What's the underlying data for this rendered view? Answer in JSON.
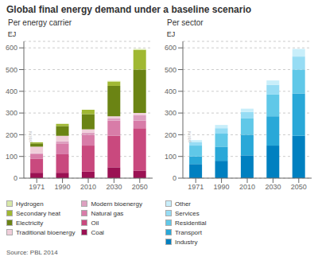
{
  "chart_data": [
    {
      "type": "bar",
      "stacked": true,
      "title": "Global final energy demand under a baseline scenario",
      "subtitle": "Per energy carrier",
      "annotations": [
        "pbl.nl",
        "Source: PBL 2014"
      ],
      "categories": [
        "1971",
        "1990",
        "2010",
        "2030",
        "2050"
      ],
      "ylabel": "EJ",
      "ylim": [
        0,
        630
      ],
      "yticks": [
        0,
        100,
        200,
        300,
        400,
        500,
        600
      ],
      "grid": true,
      "series": [
        {
          "name": "Coal",
          "color": "#9b1153",
          "values": [
            25,
            25,
            30,
            50,
            35
          ]
        },
        {
          "name": "Oil",
          "color": "#c9497e",
          "values": [
            65,
            85,
            120,
            145,
            195
          ]
        },
        {
          "name": "Natural gas",
          "color": "#d87ca8",
          "values": [
            20,
            50,
            50,
            70,
            35
          ]
        },
        {
          "name": "Modern bioenergy",
          "color": "#dda0c0",
          "values": [
            5,
            10,
            10,
            10,
            25
          ]
        },
        {
          "name": "Traditional bioenergy",
          "color": "#f0ceda",
          "values": [
            30,
            25,
            15,
            10,
            10
          ]
        },
        {
          "name": "Electricity",
          "color": "#6b8414",
          "values": [
            15,
            45,
            70,
            140,
            200
          ]
        },
        {
          "name": "Secondary heat",
          "color": "#a0b832",
          "values": [
            5,
            10,
            20,
            20,
            90
          ]
        },
        {
          "name": "Hydrogen",
          "color": "#d8e8a8",
          "values": [
            0,
            0,
            0,
            3,
            5
          ]
        }
      ]
    },
    {
      "type": "bar",
      "stacked": true,
      "subtitle": "Per sector",
      "annotations": [
        "pbl.nl"
      ],
      "categories": [
        "1971",
        "1990",
        "2010",
        "2030",
        "2050"
      ],
      "ylabel": "EJ",
      "ylim": [
        0,
        630
      ],
      "yticks": [
        0,
        100,
        200,
        300,
        400,
        500,
        600
      ],
      "grid": true,
      "series": [
        {
          "name": "Industry",
          "color": "#0080c0",
          "values": [
            65,
            80,
            105,
            150,
            195
          ]
        },
        {
          "name": "Transport",
          "color": "#29a8d8",
          "values": [
            35,
            65,
            95,
            135,
            195
          ]
        },
        {
          "name": "Residential",
          "color": "#60c8e8",
          "values": [
            50,
            60,
            75,
            100,
            110
          ]
        },
        {
          "name": "Services",
          "color": "#96dcf4",
          "values": [
            15,
            25,
            30,
            45,
            60
          ]
        },
        {
          "name": "Other",
          "color": "#c8eefa",
          "values": [
            10,
            15,
            15,
            20,
            35
          ]
        }
      ]
    }
  ]
}
